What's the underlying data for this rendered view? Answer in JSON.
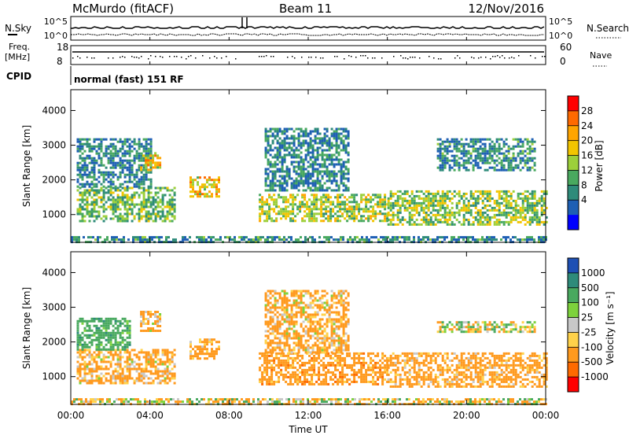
{
  "header": {
    "station": "McMurdo (fitACF)",
    "beam": "Beam 11",
    "date": "12/Nov/2016"
  },
  "top_panels": {
    "nsky_label": "N.Sky",
    "nsky_ticks": [
      "10^5",
      "10^0"
    ],
    "nsearch_label": "N.Search",
    "nsearch_ticks": [
      "10^5",
      "10^0"
    ],
    "freq_label": "Freq.",
    "freq_unit": "[MHz]",
    "freq_ticks": [
      "18",
      "8"
    ],
    "nave_label": "Nave",
    "nave_ticks": [
      "60",
      "0"
    ],
    "cpid_label": "CPID",
    "cpid_text": "normal (fast) 151 RF"
  },
  "chart_data": [
    {
      "type": "heatmap",
      "panel": "power",
      "ylabel": "Slant Range [km]",
      "yticks": [
        "1000",
        "2000",
        "3000",
        "4000"
      ],
      "ylim": [
        200,
        4600
      ],
      "xlim": [
        "00:00",
        "24:00"
      ],
      "colorbar": {
        "label": "Power [dB]",
        "ticks": [
          "28",
          "24",
          "20",
          "16",
          "12",
          "8",
          "4"
        ],
        "colors": [
          "#ff0000",
          "#ff6a00",
          "#ffa500",
          "#f2c500",
          "#9ccf3a",
          "#49a95f",
          "#2e8b7a",
          "#1e5fb4",
          "#0000ff"
        ]
      },
      "regions": [
        {
          "t0": 0.3,
          "t1": 5.2,
          "r0": 800,
          "r1": 1800,
          "level": 11
        },
        {
          "t0": 0.3,
          "t1": 4.0,
          "r0": 1800,
          "r1": 3200,
          "level": 5
        },
        {
          "t0": 3.5,
          "t1": 4.5,
          "r0": 2300,
          "r1": 2800,
          "level": 18
        },
        {
          "t0": 6.0,
          "t1": 7.5,
          "r0": 1500,
          "r1": 2100,
          "level": 18
        },
        {
          "t0": 9.5,
          "t1": 16.0,
          "r0": 800,
          "r1": 1600,
          "level": 14
        },
        {
          "t0": 9.8,
          "t1": 14.0,
          "r0": 1700,
          "r1": 3500,
          "level": 5
        },
        {
          "t0": 16.0,
          "t1": 24.0,
          "r0": 700,
          "r1": 1700,
          "level": 13
        },
        {
          "t0": 18.5,
          "t1": 23.5,
          "r0": 2300,
          "r1": 3200,
          "level": 6
        },
        {
          "t0": 0.0,
          "t1": 24.0,
          "r0": 200,
          "r1": 380,
          "level": 6
        }
      ]
    },
    {
      "type": "heatmap",
      "panel": "velocity",
      "ylabel": "Slant Range [km]",
      "yticks": [
        "1000",
        "2000",
        "3000",
        "4000"
      ],
      "ylim": [
        200,
        4600
      ],
      "xlim": [
        "00:00",
        "24:00"
      ],
      "xticks": [
        "00:00",
        "04:00",
        "08:00",
        "12:00",
        "16:00",
        "20:00",
        "00:00"
      ],
      "xlabel": "Time UT",
      "colorbar": {
        "label": "Velocity [m s⁻¹]",
        "ticks": [
          "1000",
          "500",
          "100",
          "25",
          "-25",
          "-100",
          "-500",
          "-1000"
        ],
        "colors": [
          "#1e50b4",
          "#2e8b7a",
          "#49a95f",
          "#7dd23c",
          "#c8c8c8",
          "#ffd24a",
          "#ff9a1e",
          "#ff6a00",
          "#ff0000"
        ]
      },
      "regions": [
        {
          "t0": 0.3,
          "t1": 5.2,
          "r0": 800,
          "r1": 1800,
          "level": -200
        },
        {
          "t0": 0.3,
          "t1": 3.0,
          "r0": 1800,
          "r1": 2700,
          "level": 300
        },
        {
          "t0": 3.5,
          "t1": 4.5,
          "r0": 2300,
          "r1": 2900,
          "level": -200
        },
        {
          "t0": 6.0,
          "t1": 7.5,
          "r0": 1500,
          "r1": 2100,
          "level": -250
        },
        {
          "t0": 9.5,
          "t1": 16.0,
          "r0": 800,
          "r1": 1700,
          "level": -300
        },
        {
          "t0": 9.8,
          "t1": 14.0,
          "r0": 1700,
          "r1": 3500,
          "level": -200
        },
        {
          "t0": 16.0,
          "t1": 24.0,
          "r0": 700,
          "r1": 1700,
          "level": -250
        },
        {
          "t0": 18.5,
          "t1": 23.5,
          "r0": 2300,
          "r1": 2600,
          "level": 0
        },
        {
          "t0": 0.0,
          "t1": 24.0,
          "r0": 200,
          "r1": 380,
          "level": -50
        }
      ]
    }
  ]
}
